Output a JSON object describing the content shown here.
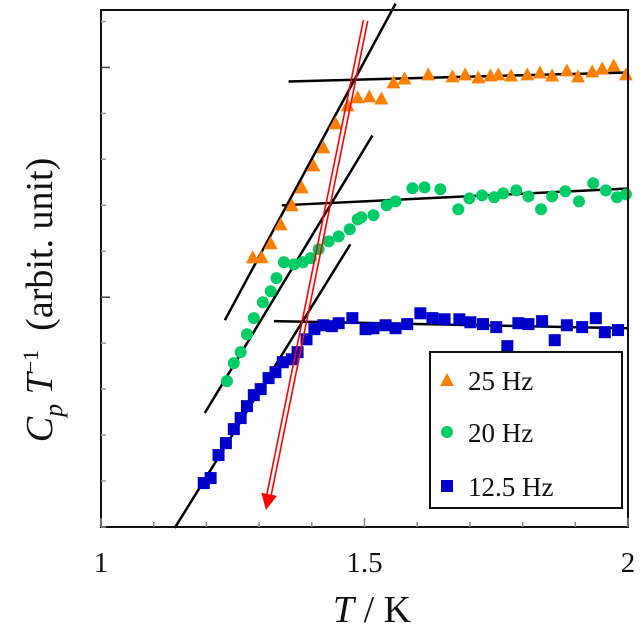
{
  "chart_data": {
    "type": "scatter",
    "title": "",
    "xlabel": {
      "var": "T",
      "unit": " / K"
    },
    "ylabel": {
      "var": "C",
      "sub": "p",
      "var2": " T",
      "sup": "−1",
      "unit": "  (arbit. unit)"
    },
    "xlim": [
      1,
      2
    ],
    "ylim": [
      0,
      2.25
    ],
    "x_ticks": [
      {
        "value": 1,
        "label": "1"
      },
      {
        "value": 1.5,
        "label": "1.5"
      },
      {
        "value": 2,
        "label": "2"
      }
    ],
    "x_minor_step": 0.1,
    "y_major_ticks": [
      1,
      2
    ],
    "y_minor_step": 0.2,
    "y_tick_labels": false,
    "grid": false,
    "legend_position": "bottom-right",
    "colors": {
      "25 Hz": "#ff7f00",
      "20 Hz": "#00cc66",
      "12.5 Hz": "#0000cc",
      "fit": "#000000",
      "arrow": "#ff0000"
    },
    "series": [
      {
        "name": "25 Hz",
        "marker": "triangle",
        "color": "#ff7f00",
        "x": [
          1.288,
          1.305,
          1.322,
          1.341,
          1.362,
          1.381,
          1.403,
          1.422,
          1.445,
          1.468,
          1.487,
          1.509,
          1.532,
          1.555,
          1.576,
          1.621,
          1.667,
          1.691,
          1.716,
          1.739,
          1.754,
          1.778,
          1.809,
          1.833,
          1.856,
          1.884,
          1.905,
          1.932,
          1.951,
          1.973,
          1.996
        ],
        "y": [
          1.174,
          1.174,
          1.235,
          1.317,
          1.4,
          1.478,
          1.574,
          1.652,
          1.757,
          1.835,
          1.87,
          1.874,
          1.865,
          1.935,
          1.952,
          1.97,
          1.961,
          1.97,
          1.957,
          1.965,
          1.97,
          1.965,
          1.97,
          1.978,
          1.965,
          1.987,
          1.961,
          1.983,
          1.996,
          2.009,
          1.97
        ]
      },
      {
        "name": "20 Hz",
        "marker": "circle",
        "color": "#00cc66",
        "x": [
          1.239,
          1.252,
          1.265,
          1.277,
          1.29,
          1.307,
          1.322,
          1.333,
          1.347,
          1.366,
          1.383,
          1.398,
          1.413,
          1.432,
          1.451,
          1.472,
          1.487,
          1.494,
          1.517,
          1.542,
          1.559,
          1.591,
          1.614,
          1.644,
          1.678,
          1.699,
          1.723,
          1.746,
          1.763,
          1.788,
          1.811,
          1.835,
          1.856,
          1.881,
          1.907,
          1.934,
          1.958,
          1.979,
          1.996
        ],
        "y": [
          0.635,
          0.713,
          0.761,
          0.839,
          0.909,
          0.978,
          1.026,
          1.083,
          1.152,
          1.143,
          1.152,
          1.17,
          1.209,
          1.243,
          1.265,
          1.296,
          1.339,
          1.348,
          1.357,
          1.4,
          1.417,
          1.474,
          1.478,
          1.47,
          1.383,
          1.43,
          1.443,
          1.435,
          1.452,
          1.465,
          1.439,
          1.383,
          1.439,
          1.461,
          1.417,
          1.496,
          1.465,
          1.435,
          1.448
        ]
      },
      {
        "name": "12.5 Hz",
        "marker": "square",
        "color": "#0000cc",
        "x": [
          1.195,
          1.208,
          1.223,
          1.237,
          1.252,
          1.265,
          1.277,
          1.29,
          1.303,
          1.318,
          1.331,
          1.345,
          1.362,
          1.373,
          1.39,
          1.405,
          1.422,
          1.438,
          1.451,
          1.477,
          1.502,
          1.517,
          1.54,
          1.559,
          1.581,
          1.606,
          1.629,
          1.652,
          1.68,
          1.701,
          1.725,
          1.75,
          1.771,
          1.792,
          1.811,
          1.837,
          1.861,
          1.884,
          1.913,
          1.939,
          1.956,
          1.981
        ],
        "y": [
          0.191,
          0.213,
          0.313,
          0.365,
          0.426,
          0.474,
          0.526,
          0.574,
          0.6,
          0.648,
          0.674,
          0.717,
          0.73,
          0.761,
          0.817,
          0.861,
          0.878,
          0.874,
          0.887,
          0.909,
          0.861,
          0.865,
          0.878,
          0.865,
          0.883,
          0.93,
          0.909,
          0.904,
          0.904,
          0.891,
          0.883,
          0.87,
          0.787,
          0.887,
          0.883,
          0.896,
          0.813,
          0.878,
          0.87,
          0.909,
          0.848,
          0.857
        ]
      }
    ],
    "fit_lines": [
      {
        "series": "25 Hz",
        "kind": "steep",
        "x": [
          1.235,
          1.559
        ],
        "y": [
          0.9,
          2.278
        ]
      },
      {
        "series": "25 Hz",
        "kind": "flat",
        "x": [
          1.356,
          2.0
        ],
        "y": [
          1.939,
          1.978
        ]
      },
      {
        "series": "20 Hz",
        "kind": "steep",
        "x": [
          1.197,
          1.515
        ],
        "y": [
          0.496,
          1.704
        ]
      },
      {
        "series": "20 Hz",
        "kind": "flat",
        "x": [
          1.343,
          2.0
        ],
        "y": [
          1.4,
          1.473
        ]
      },
      {
        "series": "12.5 Hz",
        "kind": "steep",
        "x": [
          1.14,
          1.473
        ],
        "y": [
          -0.004,
          1.23
        ]
      },
      {
        "series": "12.5 Hz",
        "kind": "flat",
        "x": [
          1.328,
          2.0
        ],
        "y": [
          0.896,
          0.865
        ]
      }
    ],
    "arrow": {
      "x": [
        1.502,
        1.313
      ],
      "y": [
        2.204,
        0.074
      ],
      "style": "double-line"
    }
  }
}
